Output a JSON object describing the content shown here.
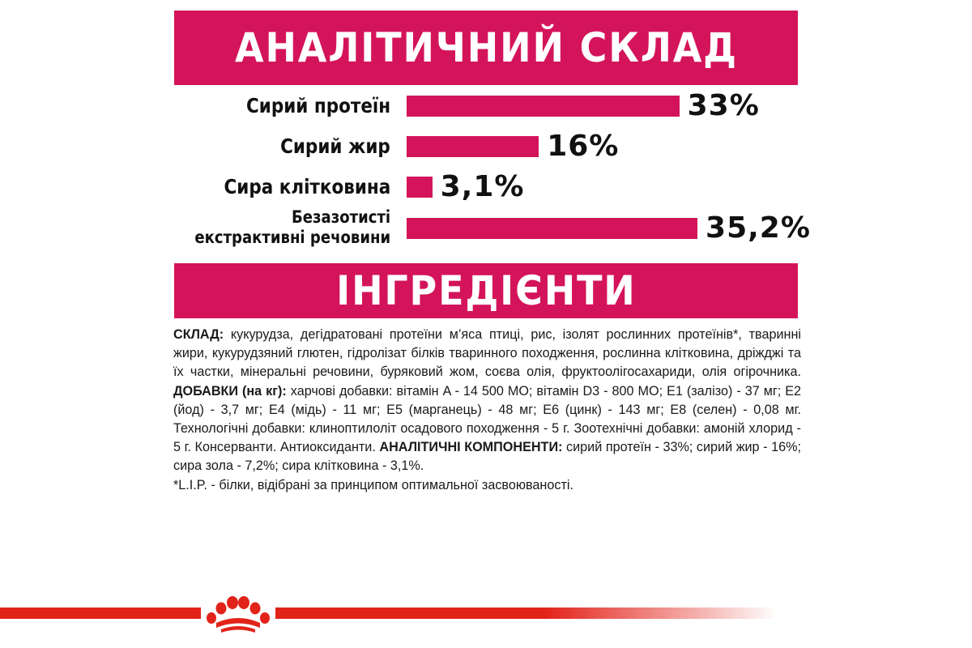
{
  "analysis": {
    "title": "АНАЛІТИЧНИЙ СКЛАД",
    "accent_color": "#d4145a",
    "rows": [
      {
        "label": "Сирий протеїн",
        "value": "33%",
        "amount": 33
      },
      {
        "label": "Сирий жир",
        "value": "16%",
        "amount": 16
      },
      {
        "label": "Сира клітковина",
        "value": "3,1%",
        "amount": 3.1
      },
      {
        "label_line1": "Безазотисті",
        "label_line2": "екстрактивні речовини",
        "value": "35,2%",
        "amount": 35.2
      }
    ]
  },
  "ingredients": {
    "title": "ІНГРЕДІЄНТИ",
    "composition_heading": "СКЛАД:",
    "composition_text": " кукурудза, дегідратовані протеїни м’яса птиці, рис, ізолят рослинних протеїнів*, тваринні жири, кукурудзяний глютен, гідролізат білків тваринного походження, рослинна клітковина, дріжджі та їх частки, мінеральні речовини, буряковий жом, соєва олія, фруктоолігосахариди, олія огірочника. ",
    "additives_heading": "ДОБАВКИ (на кг):",
    "additives_text": " харчові добавки: вітамін A - 14 500 МО; вітамін D3 - 800 МО; E1 (залізо) - 37 мг; E2 (йод) - 3,7 мг; E4 (мідь) - 11 мг; E5 (марганець) - 48 мг; E6 (цинк) - 143 мг; E8 (селен) - 0,08 мг. Технологічні добавки: клиноптилоліт осадового походження - 5 г. Зоотехнічні добавки: амоній хлорид - 5 г. Консерванти. Антиоксиданти. ",
    "components_heading": "АНАЛІТИЧНІ КОМПОНЕНТИ:",
    "components_text": " сирий протеїн - 33%; сирий жир - 16%; сира зола - 7,2%; сира клітковина - 3,1%.",
    "footnote": "*L.I.P. - білки, відібрані за принципом оптимальної засвоюваності."
  },
  "footer": {
    "logo_icon": "royal-canin-crown-icon",
    "line_color": "#e2231a"
  }
}
